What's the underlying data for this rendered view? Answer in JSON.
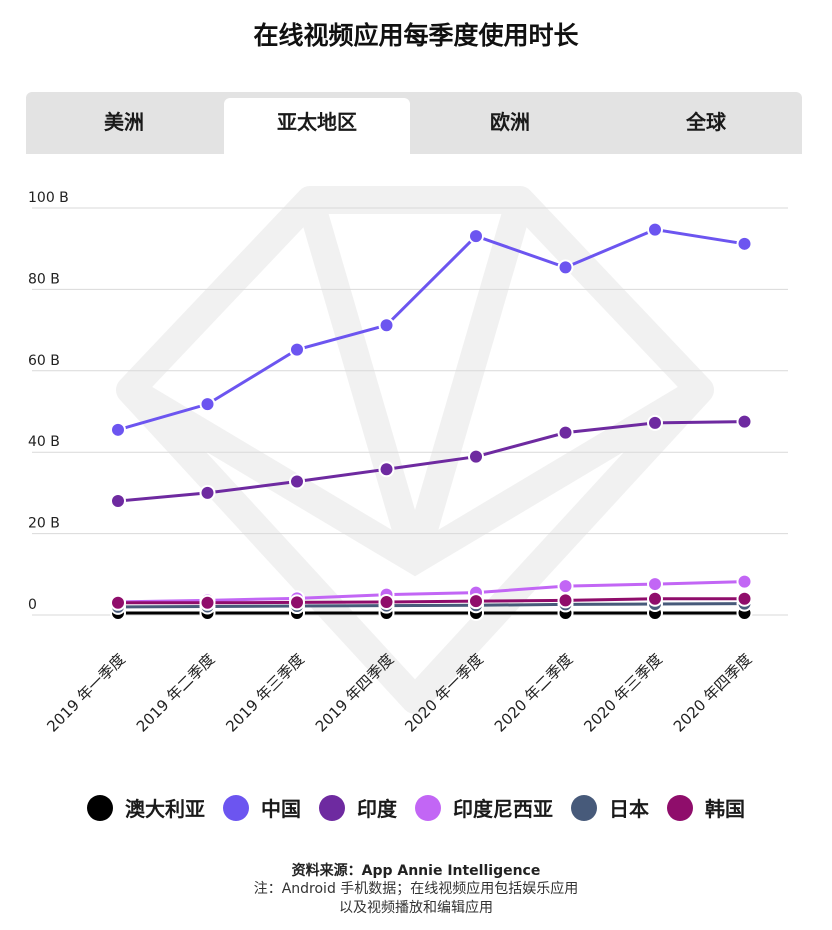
{
  "title": "在线视频应用每季度使用时长",
  "tabs": [
    {
      "label": "美洲",
      "active": false
    },
    {
      "label": "亚太地区",
      "active": true
    },
    {
      "label": "欧洲",
      "active": false
    },
    {
      "label": "全球",
      "active": false
    }
  ],
  "source": "资料来源：App Annie Intelligence",
  "note": "注：Android 手机数据；在线视频应用包括娱乐应用以及视频播放和编辑应用",
  "chart_data": {
    "type": "line",
    "categories": [
      "2019 年一季度",
      "2019 年二季度",
      "2019 年三季度",
      "2019 年四季度",
      "2020 年一季度",
      "2020 年二季度",
      "2020 年三季度",
      "2020 年四季度"
    ],
    "yticks": [
      0,
      20,
      40,
      60,
      80,
      100
    ],
    "ytick_labels": [
      "0",
      "20 B",
      "40 B",
      "60 B",
      "80 B",
      "100 B"
    ],
    "ylim": [
      0,
      100
    ],
    "grid": true,
    "legend_position": "bottom",
    "series": [
      {
        "name": "澳大利亚",
        "color": "#000000",
        "values": [
          0.5,
          0.5,
          0.5,
          0.5,
          0.5,
          0.5,
          0.5,
          0.5
        ]
      },
      {
        "name": "中国",
        "color": "#6c55f0",
        "values": [
          45.5,
          51.8,
          65.2,
          71.2,
          93.1,
          85.4,
          94.7,
          91.2
        ]
      },
      {
        "name": "印度",
        "color": "#6e2aa0",
        "values": [
          28,
          30,
          32.8,
          35.8,
          38.9,
          44.8,
          47.2,
          47.5
        ]
      },
      {
        "name": "印度尼西亚",
        "color": "#c266f5",
        "values": [
          3.2,
          3.6,
          4.1,
          5.0,
          5.5,
          7.1,
          7.6,
          8.2
        ]
      },
      {
        "name": "日本",
        "color": "#475a7a",
        "values": [
          2.0,
          2.1,
          2.2,
          2.3,
          2.4,
          2.6,
          2.7,
          2.8
        ]
      },
      {
        "name": "韩国",
        "color": "#8f0d6b",
        "values": [
          3.0,
          3.0,
          3.1,
          3.2,
          3.4,
          3.6,
          4.0,
          4.0
        ]
      }
    ]
  }
}
